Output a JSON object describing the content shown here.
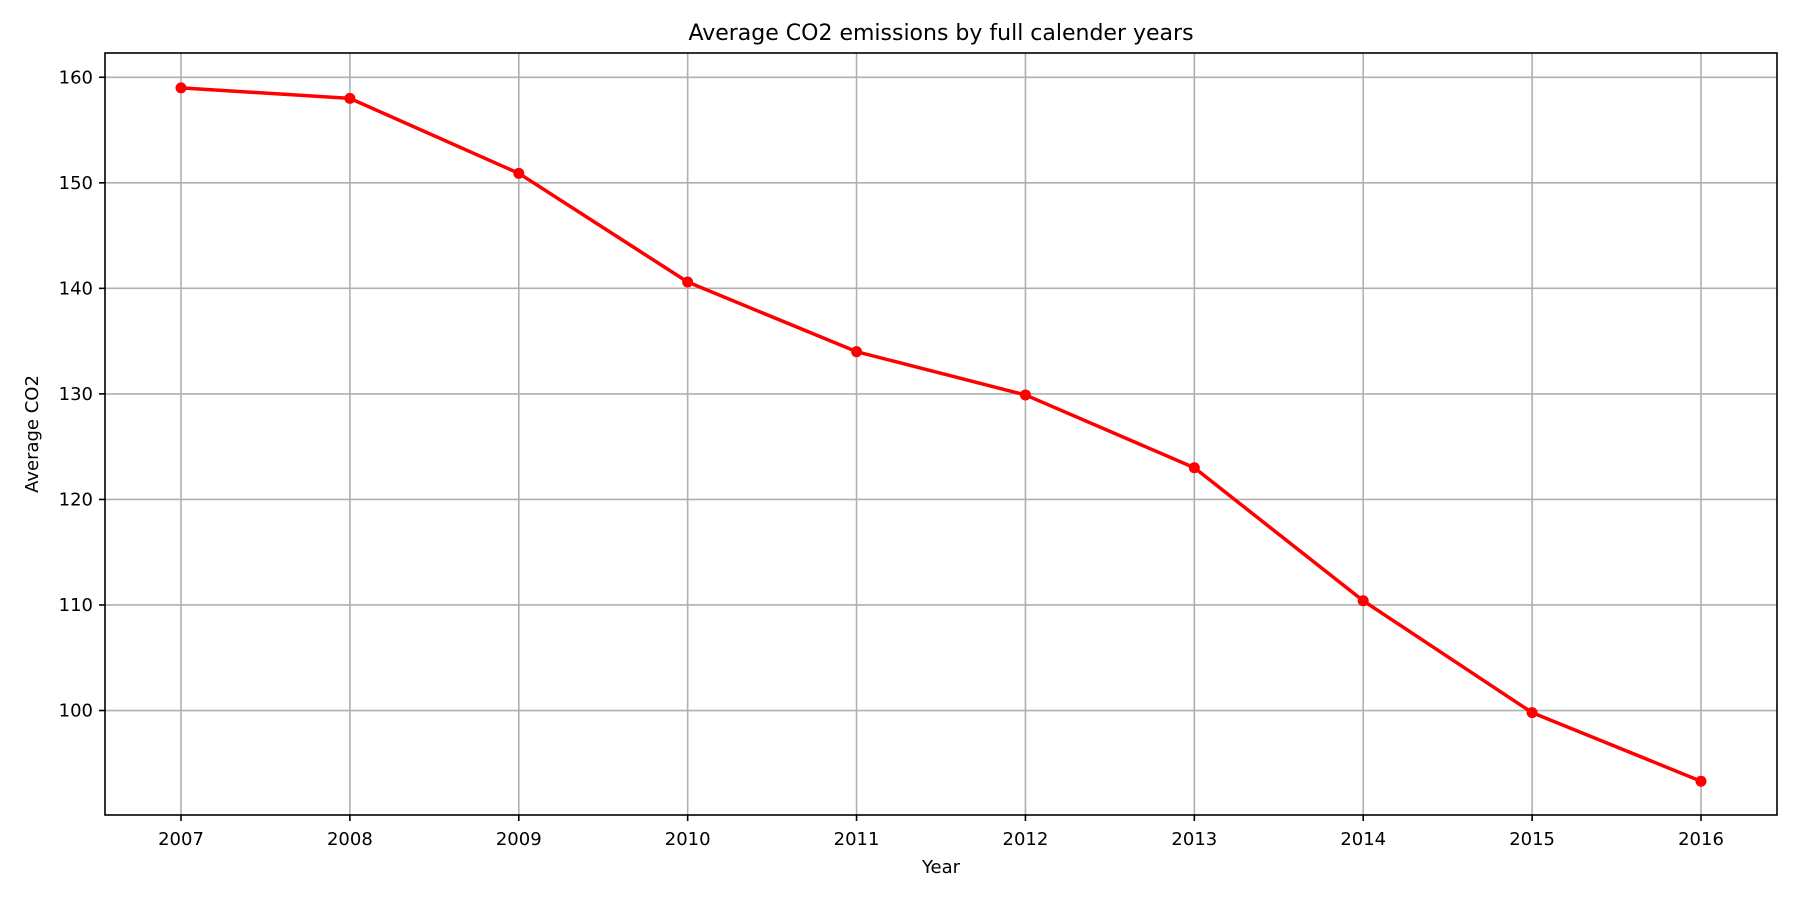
{
  "chart_data": {
    "type": "line",
    "title": "Average CO2 emissions by full calender years",
    "xlabel": "Year",
    "ylabel": "Average CO2",
    "x": [
      2007,
      2008,
      2009,
      2010,
      2011,
      2012,
      2013,
      2014,
      2015,
      2016
    ],
    "series": [
      {
        "values": [
          159.0,
          158.0,
          150.9,
          140.6,
          134.0,
          129.9,
          123.0,
          110.4,
          99.8,
          93.3
        ],
        "color": "#ff0000",
        "marker": "circle"
      }
    ],
    "xlim": [
      2006.55,
      2016.45
    ],
    "ylim": [
      90.1,
      162.3
    ],
    "yticks": [
      100,
      110,
      120,
      130,
      140,
      150,
      160
    ],
    "xticks": [
      2007,
      2008,
      2009,
      2010,
      2011,
      2012,
      2013,
      2014,
      2015,
      2016
    ],
    "grid": true,
    "legend": "none"
  }
}
